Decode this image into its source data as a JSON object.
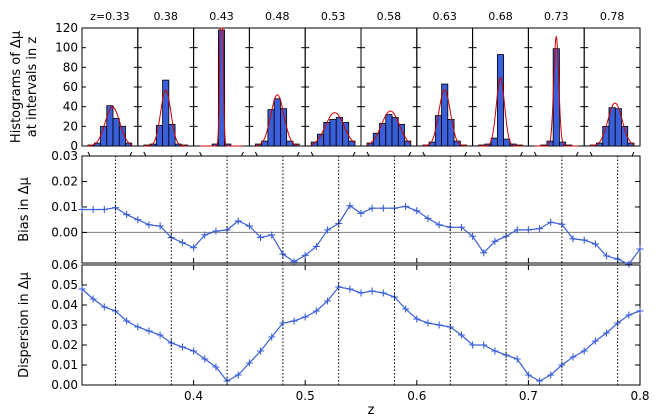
{
  "chart_data": [
    {
      "type": "bar",
      "panel": "histograms",
      "ylabel": [
        "Histograms of Δμ",
        "at intervals in z"
      ],
      "ylim": [
        0,
        120
      ],
      "y_ticks": [
        0,
        20,
        40,
        60,
        80,
        100,
        120
      ],
      "series_colors": {
        "bars": "#3a5fd8",
        "fit": "#cc0000"
      },
      "subplots": [
        {
          "label": "z=0.33",
          "counts": [
            1,
            3,
            20,
            41,
            28,
            20,
            3
          ]
        },
        {
          "label": "0.38",
          "counts": [
            1,
            2,
            21,
            67,
            22,
            2,
            1
          ]
        },
        {
          "label": "0.43",
          "counts": [
            0,
            0,
            2,
            118,
            2,
            0,
            0
          ]
        },
        {
          "label": "0.48",
          "counts": [
            2,
            5,
            37,
            48,
            38,
            5,
            2
          ]
        },
        {
          "label": "0.53",
          "counts": [
            4,
            12,
            24,
            27,
            29,
            24,
            5
          ]
        },
        {
          "label": "0.58",
          "counts": [
            3,
            13,
            23,
            32,
            29,
            22,
            5
          ]
        },
        {
          "label": "0.63",
          "counts": [
            1,
            4,
            31,
            63,
            27,
            5,
            1
          ]
        },
        {
          "label": "0.68",
          "counts": [
            1,
            2,
            8,
            93,
            7,
            2,
            1
          ]
        },
        {
          "label": "0.73",
          "counts": [
            0,
            1,
            5,
            99,
            4,
            1,
            0
          ]
        },
        {
          "label": "0.78",
          "counts": [
            1,
            3,
            20,
            39,
            38,
            20,
            3
          ]
        }
      ]
    },
    {
      "type": "line",
      "panel": "bias",
      "ylabel": "Bias in Δμ",
      "ylim": [
        -0.012,
        0.03
      ],
      "y_ticks": [
        0.03,
        0.02,
        0.01,
        0.0
      ],
      "y_tick_labels": [
        "0.03",
        "0.02",
        "0.01",
        "0.00"
      ],
      "reference_line": 0.0,
      "series": [
        {
          "x": [
            0.3,
            0.31,
            0.32,
            0.33,
            0.34,
            0.35,
            0.36,
            0.37,
            0.38,
            0.39,
            0.4,
            0.41,
            0.42,
            0.43,
            0.44,
            0.45,
            0.46,
            0.47,
            0.48,
            0.49,
            0.5,
            0.51,
            0.52,
            0.53,
            0.54,
            0.55,
            0.56,
            0.57,
            0.58,
            0.59,
            0.6,
            0.61,
            0.62,
            0.63,
            0.64,
            0.65,
            0.66,
            0.67,
            0.68,
            0.69,
            0.7,
            0.71,
            0.72,
            0.73,
            0.74,
            0.75,
            0.76,
            0.77,
            0.78,
            0.79,
            0.8
          ],
          "values": [
            0.009,
            0.009,
            0.009,
            0.0097,
            0.007,
            0.005,
            0.003,
            0.0025,
            -0.002,
            -0.004,
            -0.006,
            -0.001,
            0.0005,
            0.001,
            0.0045,
            0.0025,
            -0.002,
            -0.001,
            -0.0085,
            -0.0115,
            -0.009,
            -0.0055,
            0.001,
            0.0035,
            0.0105,
            0.0075,
            0.0095,
            0.0095,
            0.0095,
            0.0102,
            0.0085,
            0.0055,
            0.003,
            0.002,
            0.002,
            -0.0015,
            -0.008,
            -0.0035,
            -0.0015,
            0.001,
            0.001,
            0.0015,
            0.004,
            0.0032,
            -0.0025,
            -0.003,
            -0.0045,
            -0.0092,
            -0.0105,
            -0.0125,
            -0.0065
          ]
        }
      ],
      "color": "#3a5fd8"
    },
    {
      "type": "line",
      "panel": "dispersion",
      "xlabel": "z",
      "ylabel": "Dispersion in Δμ",
      "xlim": [
        0.3,
        0.8
      ],
      "ylim": [
        0.0,
        0.06
      ],
      "x_ticks": [
        0.4,
        0.5,
        0.6,
        0.7,
        0.8
      ],
      "x_tick_labels": [
        "0.4",
        "0.5",
        "0.6",
        "0.7",
        "0.8"
      ],
      "y_ticks": [
        0.0,
        0.01,
        0.02,
        0.03,
        0.04,
        0.05,
        0.06
      ],
      "y_tick_labels": [
        "0.00",
        "0.01",
        "0.02",
        "0.03",
        "0.04",
        "0.05",
        "0.06"
      ],
      "series": [
        {
          "x": [
            0.3,
            0.31,
            0.32,
            0.33,
            0.34,
            0.35,
            0.36,
            0.37,
            0.38,
            0.39,
            0.4,
            0.41,
            0.42,
            0.43,
            0.44,
            0.45,
            0.46,
            0.47,
            0.48,
            0.49,
            0.5,
            0.51,
            0.52,
            0.53,
            0.54,
            0.55,
            0.56,
            0.57,
            0.58,
            0.59,
            0.6,
            0.61,
            0.62,
            0.63,
            0.64,
            0.65,
            0.66,
            0.67,
            0.68,
            0.69,
            0.7,
            0.71,
            0.72,
            0.73,
            0.74,
            0.75,
            0.76,
            0.77,
            0.78,
            0.79,
            0.8
          ],
          "values": [
            0.048,
            0.043,
            0.039,
            0.037,
            0.032,
            0.029,
            0.027,
            0.025,
            0.021,
            0.019,
            0.017,
            0.013,
            0.009,
            0.002,
            0.005,
            0.011,
            0.017,
            0.024,
            0.031,
            0.032,
            0.034,
            0.037,
            0.042,
            0.049,
            0.048,
            0.046,
            0.047,
            0.046,
            0.044,
            0.038,
            0.033,
            0.031,
            0.03,
            0.029,
            0.025,
            0.02,
            0.02,
            0.017,
            0.015,
            0.013,
            0.005,
            0.002,
            0.005,
            0.01,
            0.014,
            0.017,
            0.022,
            0.026,
            0.031,
            0.035,
            0.037
          ]
        }
      ],
      "color": "#3a5fd8"
    }
  ],
  "reference_z": [
    0.33,
    0.38,
    0.43,
    0.48,
    0.53,
    0.58,
    0.63,
    0.68,
    0.73,
    0.78
  ]
}
